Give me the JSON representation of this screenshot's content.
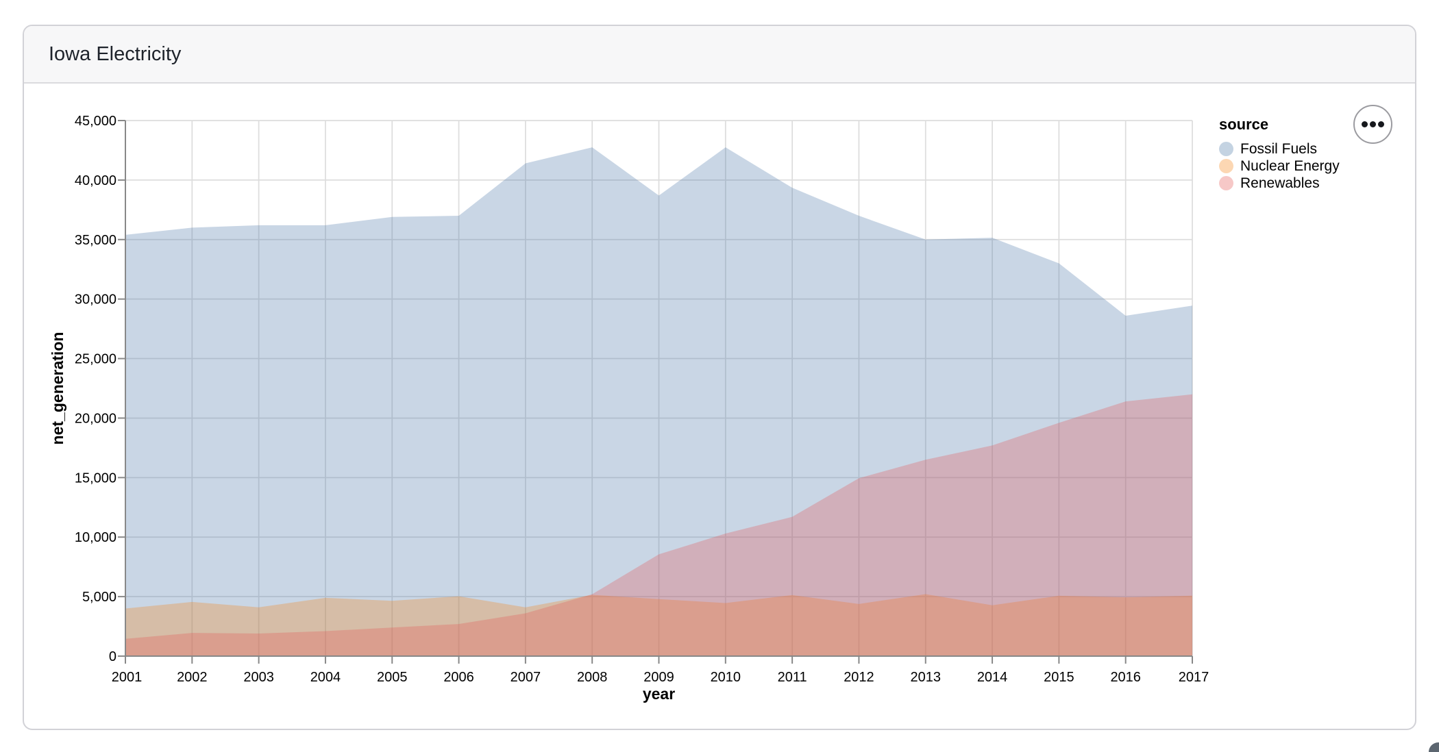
{
  "header": {
    "title": "Iowa Electricity"
  },
  "chart_data": {
    "type": "area",
    "title": "Iowa Electricity",
    "xlabel": "year",
    "ylabel": "net_generation",
    "x": [
      2001,
      2002,
      2003,
      2004,
      2005,
      2006,
      2007,
      2008,
      2009,
      2010,
      2011,
      2012,
      2013,
      2014,
      2015,
      2016,
      2017
    ],
    "xticks": [
      "2001",
      "2002",
      "2003",
      "2004",
      "2005",
      "2006",
      "2007",
      "2008",
      "2009",
      "2010",
      "2011",
      "2012",
      "2013",
      "2014",
      "2015",
      "2016",
      "2017"
    ],
    "series": [
      {
        "name": "Fossil Fuels",
        "color": "#4c78a8",
        "values": [
          35400,
          36000,
          36200,
          36200,
          36900,
          37000,
          41400,
          42750,
          38700,
          42750,
          39350,
          37000,
          35000,
          35150,
          33000,
          28600,
          29450
        ]
      },
      {
        "name": "Nuclear Energy",
        "color": "#f58518",
        "values": [
          4000,
          4550,
          4100,
          4900,
          4650,
          5030,
          4100,
          5150,
          4790,
          4460,
          5130,
          4380,
          5210,
          4270,
          5070,
          4940,
          5080
        ]
      },
      {
        "name": "Renewables",
        "color": "#e45756",
        "values": [
          1450,
          1950,
          1900,
          2100,
          2400,
          2700,
          3600,
          5200,
          8550,
          10300,
          11700,
          14950,
          16500,
          17700,
          19600,
          21400,
          22000
        ]
      }
    ],
    "opacity": 0.3,
    "ylim": [
      0,
      45000
    ],
    "ytick_step": 5000,
    "yticks": [
      "0",
      "5,000",
      "10,000",
      "15,000",
      "20,000",
      "25,000",
      "30,000",
      "35,000",
      "40,000",
      "45,000"
    ],
    "grid": true,
    "legend": {
      "title": "source",
      "position": "right"
    }
  },
  "actions_button": {
    "icon": "ellipsis"
  }
}
